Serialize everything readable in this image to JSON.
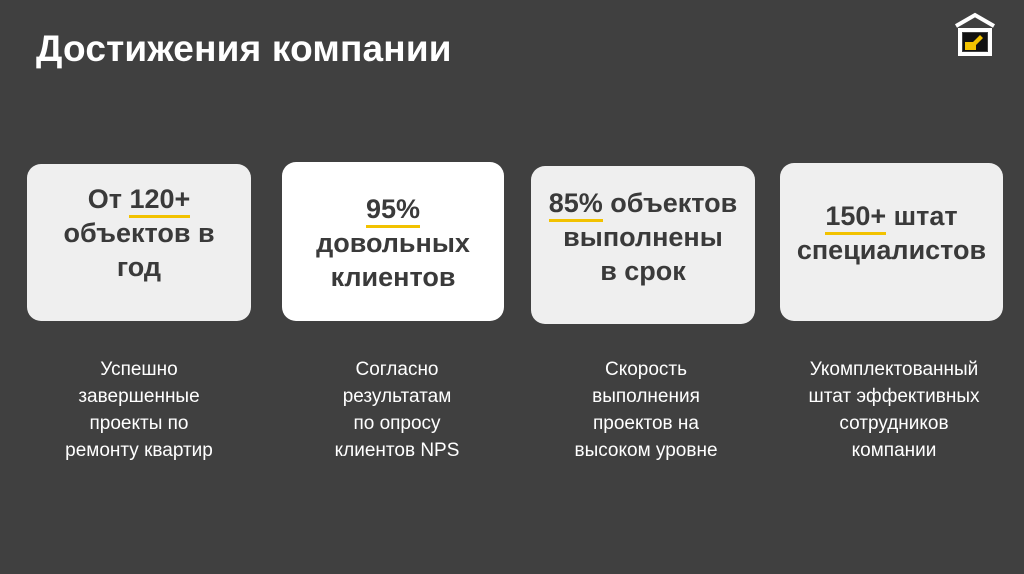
{
  "title": "Достижения компании",
  "brand": {
    "accent": "#f2c200",
    "logo_icon": "house-arrow-icon"
  },
  "cards": [
    {
      "lines": [
        "",
        "объектов в",
        "год"
      ],
      "prefix": "От ",
      "highlight": "120+",
      "desc": [
        "Успешно",
        "завершенные",
        "проекты по",
        "ремонту квартир"
      ]
    },
    {
      "highlight": "95%",
      "lines": [
        "довольных",
        "клиентов"
      ],
      "desc": [
        "Согласно",
        "результатам",
        "по опросу",
        "клиентов NPS"
      ]
    },
    {
      "highlight": "85%",
      "suffix": " объектов",
      "lines": [
        "выполнены",
        "в срок"
      ],
      "desc": [
        "Скорость",
        "выполнения",
        "проектов на",
        "высоком уровне"
      ]
    },
    {
      "highlight": "150+",
      "suffix": " штат",
      "lines": [
        "специалистов"
      ],
      "desc": [
        "Укомплектованный",
        "штат эффективных",
        "сотрудников",
        "компании"
      ]
    }
  ]
}
